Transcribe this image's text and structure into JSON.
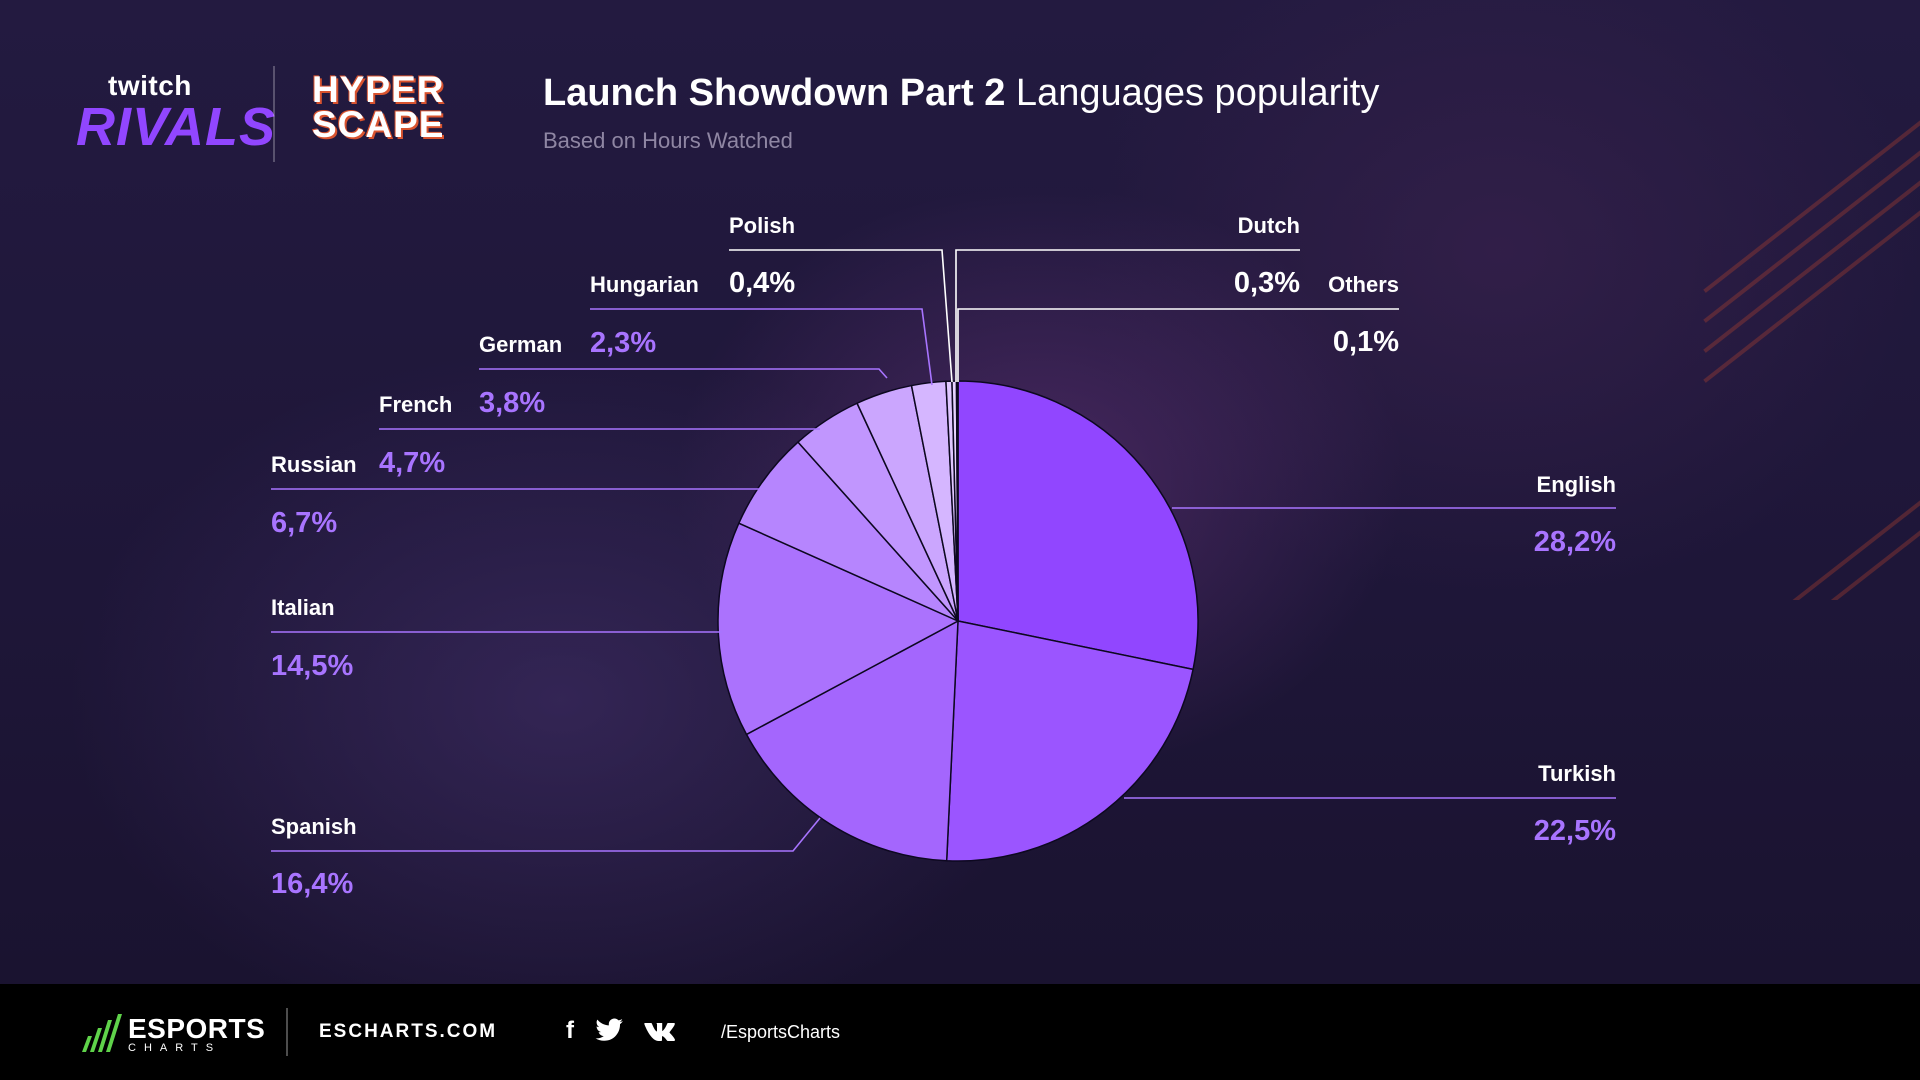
{
  "header": {
    "logo_twitch": "twitch",
    "logo_rivals": "RIVALS",
    "logo_hyper": "HYPER",
    "logo_scape": "SCAPE",
    "title_bold": "Launch Showdown Part 2",
    "title_rest": " Languages popularity",
    "subtitle": "Based on Hours Watched"
  },
  "chart_data": {
    "type": "pie",
    "title": "Launch Showdown Part 2 Languages popularity",
    "subtitle": "Based on Hours Watched",
    "start_angle": "12 o'clock, clockwise",
    "slices": [
      {
        "label": "English",
        "value": 28.2,
        "display": "28,2%",
        "color": "#9146ff"
      },
      {
        "label": "Turkish",
        "value": 22.5,
        "display": "22,5%",
        "color": "#9b55ff"
      },
      {
        "label": "Spanish",
        "value": 16.4,
        "display": "16,4%",
        "color": "#a466fd"
      },
      {
        "label": "Italian",
        "value": 14.5,
        "display": "14,5%",
        "color": "#ab72fd"
      },
      {
        "label": "Russian",
        "value": 6.7,
        "display": "6,7%",
        "color": "#b685fe"
      },
      {
        "label": "French",
        "value": 4.7,
        "display": "4,7%",
        "color": "#c196fe"
      },
      {
        "label": "German",
        "value": 3.8,
        "display": "3,8%",
        "color": "#cba6fe"
      },
      {
        "label": "Hungarian",
        "value": 2.3,
        "display": "2,3%",
        "color": "#d5b6ff"
      },
      {
        "label": "Polish",
        "value": 0.4,
        "display": "0,4%",
        "color": "#dfc6ff"
      },
      {
        "label": "Dutch",
        "value": 0.3,
        "display": "0,3%",
        "color": "#e7d3ff"
      },
      {
        "label": "Others",
        "value": 0.1,
        "display": "0,1%",
        "color": "#efe0ff"
      }
    ],
    "value_colors": {
      "left_and_right": "#a874ff",
      "top_small": "#ffffff"
    }
  },
  "footer": {
    "brand": "ESPORTS",
    "brand_sub": "CHARTS",
    "site": "ESCHARTS.COM",
    "icons": [
      "facebook-icon",
      "twitter-icon",
      "vk-icon"
    ],
    "handle": "/EsportsCharts"
  }
}
